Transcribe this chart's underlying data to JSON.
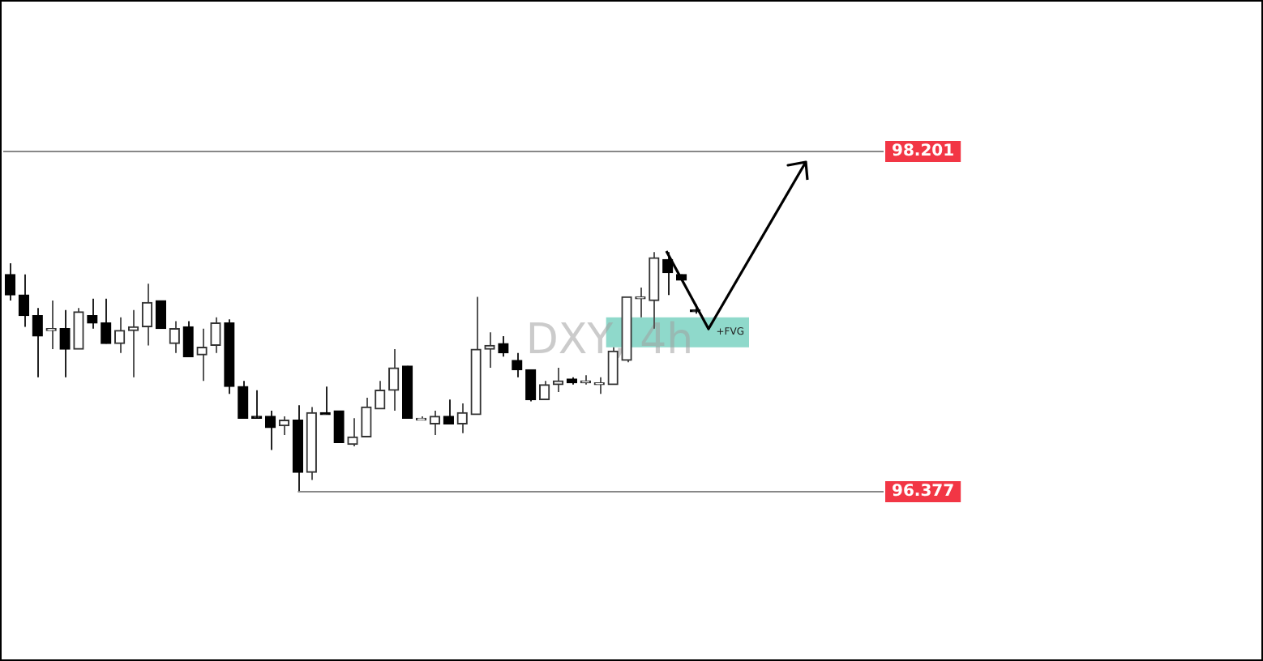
{
  "chart_data": {
    "type": "candlestick",
    "title": "DXY, 4h",
    "categories": [
      null,
      null,
      null,
      null,
      null,
      null,
      null,
      null,
      null,
      null,
      null,
      null,
      null,
      null,
      null,
      null,
      null,
      null,
      null,
      null,
      null,
      null,
      null,
      null,
      null,
      null,
      null,
      null,
      null,
      null,
      null,
      null,
      null,
      null,
      null,
      null,
      null,
      null,
      null,
      null,
      null,
      null,
      null,
      null,
      null,
      null,
      null,
      null,
      null,
      null,
      null
    ],
    "ohlc": [
      [
        97.54,
        97.6,
        97.4,
        97.43
      ],
      [
        97.43,
        97.54,
        97.26,
        97.32
      ],
      [
        97.32,
        97.36,
        96.99,
        97.21
      ],
      [
        97.24,
        97.4,
        97.14,
        97.25
      ],
      [
        97.25,
        97.35,
        96.99,
        97.14
      ],
      [
        97.14,
        97.36,
        97.14,
        97.34
      ],
      [
        97.32,
        97.41,
        97.25,
        97.28
      ],
      [
        97.28,
        97.41,
        97.17,
        97.17
      ],
      [
        97.17,
        97.31,
        97.12,
        97.24
      ],
      [
        97.24,
        97.35,
        96.99,
        97.26
      ],
      [
        97.26,
        97.49,
        97.16,
        97.39
      ],
      [
        97.4,
        97.4,
        97.25,
        97.25
      ],
      [
        97.17,
        97.29,
        97.12,
        97.25
      ],
      [
        97.26,
        97.29,
        97.1,
        97.1
      ],
      [
        97.11,
        97.25,
        96.97,
        97.15
      ],
      [
        97.16,
        97.31,
        97.12,
        97.28
      ],
      [
        97.28,
        97.3,
        96.9,
        96.94
      ],
      [
        96.94,
        96.97,
        96.77,
        96.77
      ],
      [
        96.78,
        96.92,
        96.77,
        96.77
      ],
      [
        96.78,
        96.81,
        96.6,
        96.72
      ],
      [
        96.73,
        96.78,
        96.68,
        96.76
      ],
      [
        96.76,
        96.84,
        96.377,
        96.48
      ],
      [
        96.48,
        96.83,
        96.44,
        96.8
      ],
      [
        96.8,
        96.94,
        96.79,
        96.79
      ],
      [
        96.81,
        96.81,
        96.64,
        96.64
      ],
      [
        96.63,
        96.77,
        96.62,
        96.67
      ],
      [
        96.67,
        96.88,
        96.67,
        96.83
      ],
      [
        96.82,
        96.97,
        96.82,
        96.92
      ],
      [
        96.92,
        97.14,
        96.81,
        97.04
      ],
      [
        97.05,
        97.05,
        96.77,
        96.77
      ],
      [
        96.76,
        96.78,
        96.76,
        96.77
      ],
      [
        96.74,
        96.81,
        96.68,
        96.78
      ],
      [
        96.78,
        96.87,
        96.74,
        96.74
      ],
      [
        96.74,
        96.85,
        96.69,
        96.8
      ],
      [
        96.79,
        97.42,
        96.79,
        97.14
      ],
      [
        97.14,
        97.23,
        97.04,
        97.16
      ],
      [
        97.17,
        97.21,
        97.1,
        97.12
      ],
      [
        97.08,
        97.12,
        96.99,
        97.03
      ],
      [
        97.03,
        97.03,
        96.86,
        96.87
      ],
      [
        96.87,
        96.97,
        96.87,
        96.95
      ],
      [
        96.95,
        97.04,
        96.91,
        96.97
      ],
      [
        96.98,
        96.99,
        96.95,
        96.96
      ],
      [
        96.96,
        97.0,
        96.95,
        96.97
      ],
      [
        96.95,
        96.99,
        96.9,
        96.96
      ],
      [
        96.95,
        97.15,
        96.95,
        97.13
      ],
      [
        97.08,
        97.42,
        97.07,
        97.42
      ],
      [
        97.41,
        97.47,
        97.31,
        97.42
      ],
      [
        97.4,
        97.66,
        97.25,
        97.63
      ],
      [
        97.62,
        97.66,
        97.43,
        97.55
      ],
      [
        97.54,
        97.54,
        97.51,
        97.51
      ],
      [
        97.35,
        97.38,
        97.33,
        97.34
      ]
    ],
    "ylim": [
      95.47,
      99.01
    ],
    "tick_labels": false,
    "ref_lines": [
      {
        "axis": "y",
        "value": 98.201,
        "label": "98.201",
        "color": "#888888"
      },
      {
        "axis": "y",
        "value": 96.377,
        "label": "96.377",
        "color": "#888888"
      }
    ],
    "bands": [
      {
        "axis": "y",
        "from": 97.15,
        "to": 97.31,
        "label": "+FVG",
        "color": "#8fd9cb"
      }
    ]
  }
}
